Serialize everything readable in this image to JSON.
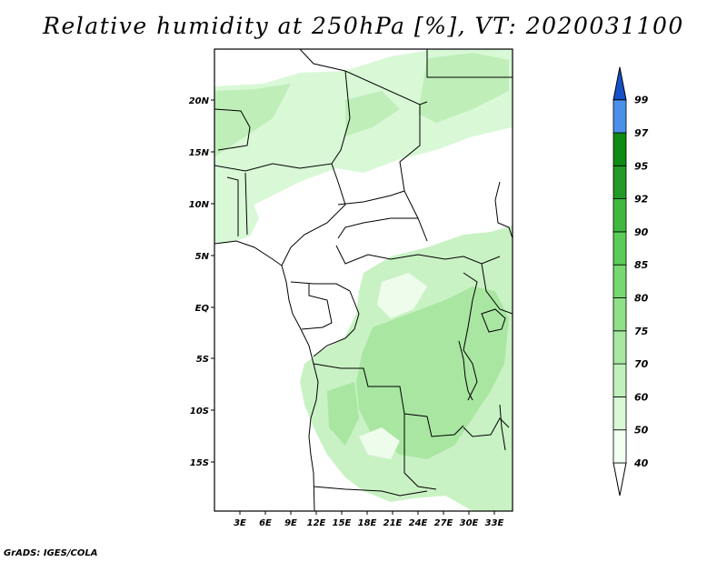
{
  "title": "Relative humidity at 250hPa [%], VT: 2020031100",
  "credit": "GrADS: IGES/COLA",
  "map": {
    "lat_labels": [
      "20N",
      "15N",
      "10N",
      "5N",
      "EQ",
      "5S",
      "10S",
      "15S"
    ],
    "lon_labels": [
      "3E",
      "6E",
      "9E",
      "12E",
      "15E",
      "18E",
      "21E",
      "24E",
      "27E",
      "30E",
      "33E"
    ]
  },
  "colorbar": {
    "levels": [
      "40",
      "50",
      "60",
      "70",
      "75",
      "80",
      "85",
      "90",
      "92",
      "95",
      "97",
      "99"
    ],
    "colors": [
      "#f0fff0",
      "#d8f8d6",
      "#c0f0bc",
      "#a8e8a2",
      "#90e088",
      "#78d870",
      "#5ccc58",
      "#40b840",
      "#239a26",
      "#0f8a12",
      "#4a90e8",
      "#2a6ad8",
      "#1650c8"
    ]
  },
  "colors": {
    "land_outline": "#000000",
    "humidity_light": "#d8f8d6",
    "humidity_mid": "#b4ecaf"
  }
}
